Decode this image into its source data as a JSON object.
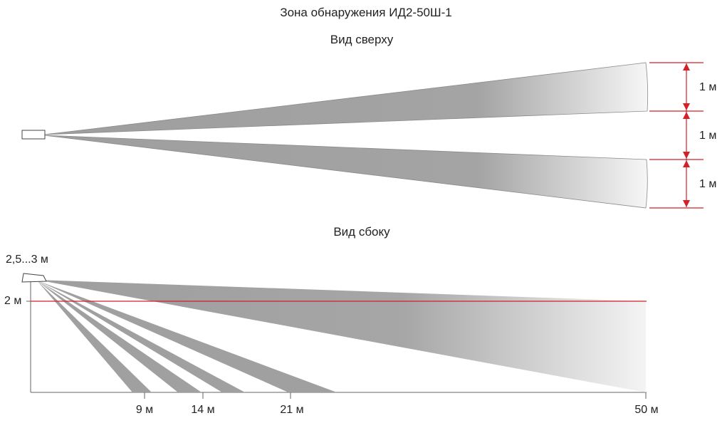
{
  "title": "Зона обнаружения ИД2-50Ш-1",
  "top_view": {
    "label": "Вид сверху",
    "spacing_labels": [
      "1 м",
      "1 м",
      "1 м"
    ]
  },
  "side_view": {
    "label": "Вид сбоку",
    "mount_height_label": "2,5...3 м",
    "height_mark_label": "2 м",
    "distance_labels": [
      "9 м",
      "14 м",
      "21 м",
      "50 м"
    ]
  },
  "colors": {
    "beam": "#9e9e9e",
    "accent": "#d42027"
  }
}
